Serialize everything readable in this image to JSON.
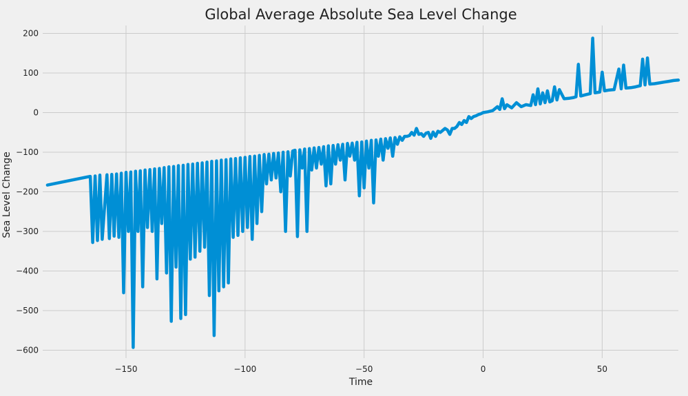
{
  "chart_data": {
    "type": "line",
    "title": "Global Average Absolute Sea Level Change",
    "xlabel": "Time",
    "ylabel": "Sea Level Change",
    "xlim": [
      -185,
      82
    ],
    "ylim": [
      -620,
      220
    ],
    "xticks": [
      -150,
      -100,
      -50,
      0,
      50
    ],
    "xtick_labels": [
      "−150",
      "−100",
      "−50",
      "0",
      "50"
    ],
    "yticks": [
      200,
      100,
      0,
      -100,
      -200,
      -300,
      -400,
      -500,
      -600
    ],
    "ytick_labels": [
      "200",
      "100",
      "0",
      "−100",
      "−200",
      "−300",
      "−400",
      "−500",
      "−600"
    ],
    "grid": true,
    "series_color": "#008fd5",
    "series": [
      {
        "values": [
          [
            -183,
            -183
          ],
          [
            -165,
            -161
          ],
          [
            -164,
            -328
          ],
          [
            -163,
            -160
          ],
          [
            -162,
            -323
          ],
          [
            -161,
            -158
          ],
          [
            -160,
            -320
          ],
          [
            -158,
            -157
          ],
          [
            -157,
            -318
          ],
          [
            -156,
            -156
          ],
          [
            -155,
            -312
          ],
          [
            -154,
            -155
          ],
          [
            -153,
            -315
          ],
          [
            -152,
            -153
          ],
          [
            -151,
            -455
          ],
          [
            -150,
            -151
          ],
          [
            -149,
            -300
          ],
          [
            -148,
            -150
          ],
          [
            -147,
            -593
          ],
          [
            -146,
            -148
          ],
          [
            -145,
            -300
          ],
          [
            -144,
            -147
          ],
          [
            -143,
            -440
          ],
          [
            -142,
            -145
          ],
          [
            -141,
            -290
          ],
          [
            -140,
            -144
          ],
          [
            -139,
            -300
          ],
          [
            -138,
            -142
          ],
          [
            -137,
            -420
          ],
          [
            -136,
            -141
          ],
          [
            -135,
            -280
          ],
          [
            -134,
            -139
          ],
          [
            -133,
            -405
          ],
          [
            -132,
            -137
          ],
          [
            -131,
            -527
          ],
          [
            -130,
            -136
          ],
          [
            -129,
            -390
          ],
          [
            -128,
            -134
          ],
          [
            -127,
            -520
          ],
          [
            -126,
            -133
          ],
          [
            -125,
            -510
          ],
          [
            -124,
            -131
          ],
          [
            -123,
            -370
          ],
          [
            -122,
            -130
          ],
          [
            -121,
            -365
          ],
          [
            -120,
            -128
          ],
          [
            -119,
            -350
          ],
          [
            -118,
            -127
          ],
          [
            -117,
            -340
          ],
          [
            -116,
            -125
          ],
          [
            -115,
            -462
          ],
          [
            -114,
            -123
          ],
          [
            -113,
            -563
          ],
          [
            -112,
            -122
          ],
          [
            -111,
            -450
          ],
          [
            -110,
            -120
          ],
          [
            -109,
            -440
          ],
          [
            -108,
            -119
          ],
          [
            -107,
            -430
          ],
          [
            -106,
            -117
          ],
          [
            -105,
            -315
          ],
          [
            -104,
            -116
          ],
          [
            -103,
            -310
          ],
          [
            -102,
            -114
          ],
          [
            -101,
            -300
          ],
          [
            -100,
            -113
          ],
          [
            -99,
            -290
          ],
          [
            -98,
            -111
          ],
          [
            -97,
            -320
          ],
          [
            -96,
            -110
          ],
          [
            -95,
            -280
          ],
          [
            -94,
            -108
          ],
          [
            -93,
            -250
          ],
          [
            -92,
            -106
          ],
          [
            -91,
            -180
          ],
          [
            -90,
            -105
          ],
          [
            -89,
            -170
          ],
          [
            -88,
            -103
          ],
          [
            -87,
            -165
          ],
          [
            -86,
            -102
          ],
          [
            -85,
            -200
          ],
          [
            -84,
            -100
          ],
          [
            -83,
            -300
          ],
          [
            -82,
            -99
          ],
          [
            -81,
            -160
          ],
          [
            -80,
            -97
          ],
          [
            -79,
            -95
          ],
          [
            -78,
            -313
          ],
          [
            -77,
            -94
          ],
          [
            -76,
            -140
          ],
          [
            -75,
            -92
          ],
          [
            -74,
            -300
          ],
          [
            -73,
            -91
          ],
          [
            -72,
            -145
          ],
          [
            -71,
            -89
          ],
          [
            -70,
            -140
          ],
          [
            -69,
            -88
          ],
          [
            -68,
            -130
          ],
          [
            -67,
            -86
          ],
          [
            -66,
            -185
          ],
          [
            -65,
            -84
          ],
          [
            -64,
            -180
          ],
          [
            -63,
            -83
          ],
          [
            -62,
            -130
          ],
          [
            -61,
            -81
          ],
          [
            -60,
            -120
          ],
          [
            -59,
            -80
          ],
          [
            -58,
            -170
          ],
          [
            -57,
            -78
          ],
          [
            -56,
            -110
          ],
          [
            -55,
            -77
          ],
          [
            -54,
            -120
          ],
          [
            -53,
            -75
          ],
          [
            -52,
            -210
          ],
          [
            -51,
            -74
          ],
          [
            -50,
            -190
          ],
          [
            -49,
            -72
          ],
          [
            -48,
            -140
          ],
          [
            -47,
            -70
          ],
          [
            -46,
            -228
          ],
          [
            -45,
            -69
          ],
          [
            -44,
            -110
          ],
          [
            -43,
            -67
          ],
          [
            -42,
            -120
          ],
          [
            -41,
            -66
          ],
          [
            -40,
            -90
          ],
          [
            -39,
            -64
          ],
          [
            -38,
            -110
          ],
          [
            -37,
            -63
          ],
          [
            -36,
            -80
          ],
          [
            -35,
            -61
          ],
          [
            -34,
            -70
          ],
          [
            -33,
            -60
          ],
          [
            -32,
            -60
          ],
          [
            -31,
            -58
          ],
          [
            -30,
            -50
          ],
          [
            -29,
            -57
          ],
          [
            -28,
            -40
          ],
          [
            -27,
            -55
          ],
          [
            -26,
            -53
          ],
          [
            -25,
            -60
          ],
          [
            -24,
            -52
          ],
          [
            -23,
            -50
          ],
          [
            -22,
            -65
          ],
          [
            -21,
            -49
          ],
          [
            -20,
            -60
          ],
          [
            -19,
            -47
          ],
          [
            -18,
            -50
          ],
          [
            -17,
            -45
          ],
          [
            -16,
            -40
          ],
          [
            -15,
            -44
          ],
          [
            -14,
            -55
          ],
          [
            -13,
            -40
          ],
          [
            -12,
            -40
          ],
          [
            -11,
            -35
          ],
          [
            -10,
            -25
          ],
          [
            -9,
            -30
          ],
          [
            -8,
            -20
          ],
          [
            -7,
            -25
          ],
          [
            -6,
            -10
          ],
          [
            -5,
            -15
          ],
          [
            -4,
            -10
          ],
          [
            -3,
            -8
          ],
          [
            -2,
            -5
          ],
          [
            -1,
            -3
          ],
          [
            0,
            0
          ],
          [
            2,
            2
          ],
          [
            4,
            5
          ],
          [
            6,
            15
          ],
          [
            7,
            8
          ],
          [
            8,
            35
          ],
          [
            9,
            10
          ],
          [
            10,
            20
          ],
          [
            12,
            12
          ],
          [
            14,
            25
          ],
          [
            16,
            15
          ],
          [
            18,
            20
          ],
          [
            20,
            18
          ],
          [
            21,
            45
          ],
          [
            22,
            20
          ],
          [
            23,
            60
          ],
          [
            24,
            22
          ],
          [
            25,
            50
          ],
          [
            26,
            25
          ],
          [
            27,
            55
          ],
          [
            28,
            27
          ],
          [
            29,
            30
          ],
          [
            30,
            65
          ],
          [
            31,
            32
          ],
          [
            32,
            58
          ],
          [
            34,
            35
          ],
          [
            36,
            36
          ],
          [
            38,
            38
          ],
          [
            39,
            40
          ],
          [
            40,
            122
          ],
          [
            41,
            42
          ],
          [
            43,
            45
          ],
          [
            45,
            48
          ],
          [
            46,
            188
          ],
          [
            47,
            50
          ],
          [
            49,
            52
          ],
          [
            50,
            102
          ],
          [
            51,
            55
          ],
          [
            53,
            57
          ],
          [
            55,
            58
          ],
          [
            57,
            110
          ],
          [
            58,
            60
          ],
          [
            59,
            120
          ],
          [
            60,
            62
          ],
          [
            62,
            63
          ],
          [
            64,
            65
          ],
          [
            66,
            68
          ],
          [
            67,
            135
          ],
          [
            68,
            70
          ],
          [
            69,
            138
          ],
          [
            70,
            72
          ],
          [
            72,
            73
          ],
          [
            74,
            75
          ],
          [
            76,
            77
          ],
          [
            78,
            79
          ],
          [
            80,
            81
          ],
          [
            82,
            82
          ]
        ]
      }
    ]
  }
}
